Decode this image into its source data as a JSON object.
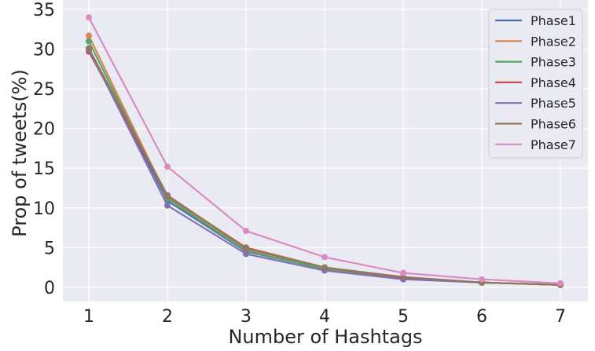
{
  "chart_data": {
    "type": "line",
    "xlabel": "Number of Hashtags",
    "ylabel": "Prop of tweets(%)",
    "x": [
      1,
      2,
      3,
      4,
      5,
      6,
      7
    ],
    "xlim": [
      0.67,
      7.35
    ],
    "ylim": [
      -1.8,
      36.2
    ],
    "yticks": [
      0,
      5,
      10,
      15,
      20,
      25,
      30,
      35
    ],
    "grid": true,
    "background": "#eaeaf2",
    "legend_position": "top-right",
    "series": [
      {
        "name": "Phase1",
        "color": "#4c72b0",
        "values": [
          30.1,
          10.9,
          4.5,
          2.3,
          1.1,
          0.6,
          0.3
        ]
      },
      {
        "name": "Phase2",
        "color": "#dd8452",
        "values": [
          31.7,
          11.3,
          4.8,
          2.4,
          1.2,
          0.6,
          0.3
        ]
      },
      {
        "name": "Phase3",
        "color": "#55a868",
        "values": [
          31.0,
          11.2,
          4.6,
          2.3,
          1.1,
          0.6,
          0.3
        ]
      },
      {
        "name": "Phase4",
        "color": "#c44e52",
        "values": [
          29.7,
          11.5,
          5.0,
          2.5,
          1.2,
          0.6,
          0.3
        ]
      },
      {
        "name": "Phase5",
        "color": "#8172b3",
        "values": [
          30.0,
          10.3,
          4.2,
          2.1,
          1.0,
          0.6,
          0.3
        ]
      },
      {
        "name": "Phase6",
        "color": "#937860",
        "values": [
          30.1,
          11.6,
          4.9,
          2.5,
          1.3,
          0.6,
          0.3
        ]
      },
      {
        "name": "Phase7",
        "color": "#da8bc3",
        "values": [
          34.0,
          15.2,
          7.1,
          3.8,
          1.8,
          1.0,
          0.5
        ]
      }
    ]
  }
}
